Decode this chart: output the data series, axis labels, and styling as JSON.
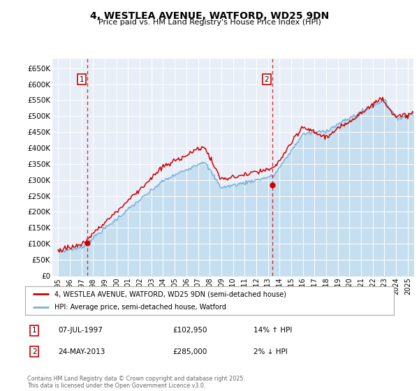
{
  "title": "4, WESTLEA AVENUE, WATFORD, WD25 9DN",
  "subtitle": "Price paid vs. HM Land Registry's House Price Index (HPI)",
  "sale1_date": "07-JUL-1997",
  "sale1_price": 102950,
  "sale1_pct": "14% ↑ HPI",
  "sale2_date": "24-MAY-2013",
  "sale2_price": 285000,
  "sale2_pct": "2% ↓ HPI",
  "sale1_x": 1997.52,
  "sale2_x": 2013.39,
  "ylim": [
    0,
    680000
  ],
  "xlim": [
    1994.5,
    2025.5
  ],
  "yticks": [
    0,
    50000,
    100000,
    150000,
    200000,
    250000,
    300000,
    350000,
    400000,
    450000,
    500000,
    550000,
    600000,
    650000
  ],
  "ytick_labels": [
    "£0",
    "£50K",
    "£100K",
    "£150K",
    "£200K",
    "£250K",
    "£300K",
    "£350K",
    "£400K",
    "£450K",
    "£500K",
    "£550K",
    "£600K",
    "£650K"
  ],
  "xticks": [
    1995,
    1996,
    1997,
    1998,
    1999,
    2000,
    2001,
    2002,
    2003,
    2004,
    2005,
    2006,
    2007,
    2008,
    2009,
    2010,
    2011,
    2012,
    2013,
    2014,
    2015,
    2016,
    2017,
    2018,
    2019,
    2020,
    2021,
    2022,
    2023,
    2024,
    2025
  ],
  "hpi_color": "#7ab0d8",
  "hpi_fill_color": "#c5dff0",
  "price_color": "#cc0000",
  "plot_bg": "#e8eef8",
  "legend_label1": "4, WESTLEA AVENUE, WATFORD, WD25 9DN (semi-detached house)",
  "legend_label2": "HPI: Average price, semi-detached house, Watford",
  "footer": "Contains HM Land Registry data © Crown copyright and database right 2025.\nThis data is licensed under the Open Government Licence v3.0."
}
